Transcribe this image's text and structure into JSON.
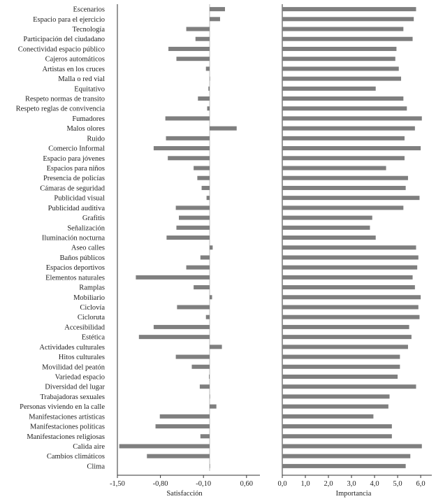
{
  "chart_data": {
    "type": "bar",
    "orientation": "horizontal",
    "bar_color": "#7f7f7f",
    "categories": [
      "Escenarios",
      "Espacio para el ejercicio",
      "Tecnología",
      "Participación del ciudadano",
      "Conectividad espacio público",
      "Cajeros automáticos",
      "Artistas en los cruces",
      "Malla o red vial",
      "Equitativo",
      "Respeto normas de transito",
      "Respeto reglas de convivencia",
      "Fumadores",
      "Malos olores",
      "Ruido",
      "Comercio Informal",
      "Espacio para jóvenes",
      "Espacios para niños",
      "Presencia de policías",
      "Cámaras de seguridad",
      "Publicidad visual",
      "Publicidad auditiva",
      "Grafitis",
      "Señalización",
      "Iluminación nocturna",
      "Aseo calles",
      "Baños públicos",
      "Espacios deportivos",
      "Elementos naturales",
      "Ramplas",
      "Mobiliario",
      "Ciclovía",
      "Cicloruta",
      "Accesibilidad",
      "Estética",
      "Actividades culturales",
      "Hitos culturales",
      "Movilidad del peatón",
      "Variedad espacio",
      "Diversidad del lugar",
      "Trabajadoras sexuales",
      "Personas viviendo en la calle",
      "Manifestaciones artísticas",
      "Manifestaciones políticas",
      "Manifestaciones religiosas",
      "Calida aire",
      "Cambios climáticos",
      "Clima"
    ],
    "panels": [
      {
        "xlabel": "Satisfacción",
        "xlim": [
          -1.5,
          0.75
        ],
        "xticks": [
          -1.5,
          -0.8,
          -0.1,
          0.6
        ],
        "xtick_labels": [
          "-1,50",
          "-0,80",
          "-0,10",
          "0,60"
        ],
        "values": [
          0.25,
          0.17,
          -0.38,
          -0.23,
          -0.67,
          -0.54,
          -0.06,
          0.0,
          -0.02,
          -0.19,
          -0.04,
          -0.72,
          0.44,
          -0.71,
          -0.91,
          -0.68,
          -0.26,
          -0.2,
          -0.13,
          -0.05,
          -0.55,
          -0.5,
          -0.54,
          -0.7,
          0.05,
          -0.15,
          -0.38,
          -1.2,
          -0.26,
          0.04,
          -0.53,
          -0.06,
          -0.91,
          -1.15,
          0.2,
          -0.55,
          -0.29,
          -0.01,
          -0.16,
          0.0,
          0.11,
          -0.81,
          -0.88,
          -0.15,
          -1.47,
          -1.02,
          0.0
        ]
      },
      {
        "xlabel": "Importancia",
        "xlim": [
          0.0,
          6.3
        ],
        "xticks": [
          0,
          1,
          2,
          3,
          4,
          5,
          6
        ],
        "xtick_labels": [
          "0,0",
          "1,0",
          "2,0",
          "3,0",
          "4,0",
          "5,0",
          "6,0"
        ],
        "values": [
          5.8,
          5.7,
          5.25,
          5.65,
          4.95,
          4.9,
          5.05,
          5.15,
          4.05,
          5.25,
          5.4,
          6.05,
          5.75,
          5.3,
          6.0,
          5.3,
          4.5,
          5.45,
          5.35,
          5.95,
          5.25,
          3.9,
          3.8,
          4.05,
          5.8,
          5.9,
          5.85,
          5.65,
          5.75,
          6.0,
          5.9,
          5.95,
          5.5,
          5.6,
          5.45,
          5.1,
          5.1,
          5.0,
          5.8,
          4.65,
          4.6,
          3.95,
          4.75,
          4.75,
          6.05,
          5.55,
          5.35
        ]
      }
    ]
  }
}
